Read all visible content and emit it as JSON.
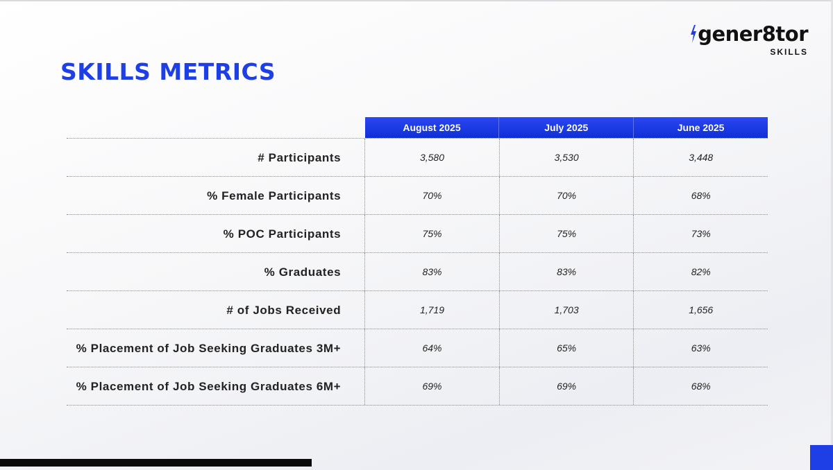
{
  "logo": {
    "name": "gener8tor",
    "subtitle": "SKILLS"
  },
  "title": "SKILLS METRICS",
  "table": {
    "columns": [
      "August 2025",
      "July 2025",
      "June 2025"
    ],
    "rows": [
      {
        "label": "# Participants",
        "values": [
          "3,580",
          "3,530",
          "3,448"
        ]
      },
      {
        "label": "% Female Participants",
        "values": [
          "70%",
          "70%",
          "68%"
        ]
      },
      {
        "label": "% POC Participants",
        "values": [
          "75%",
          "75%",
          "73%"
        ]
      },
      {
        "label": "% Graduates",
        "values": [
          "83%",
          "83%",
          "82%"
        ]
      },
      {
        "label": "# of Jobs Received",
        "values": [
          "1,719",
          "1,703",
          "1,656"
        ]
      },
      {
        "label": "% Placement of Job Seeking Graduates 3M+",
        "values": [
          "64%",
          "65%",
          "63%"
        ]
      },
      {
        "label": "% Placement of Job Seeking Graduates 6M+",
        "values": [
          "69%",
          "69%",
          "68%"
        ]
      }
    ]
  },
  "colors": {
    "accent": "#1f3fe6",
    "header_bg": "#1a38e8",
    "text": "#222222"
  }
}
